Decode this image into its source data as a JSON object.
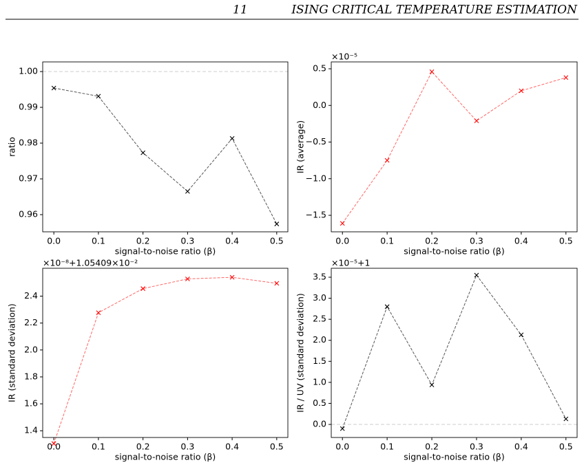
{
  "header": {
    "number": "11",
    "title": "ISING CRITICAL TEMPERATURE ESTIMATION"
  },
  "chart_data": [
    {
      "type": "line",
      "x_label": "signal-to-noise ratio (β)",
      "y_label": "ratio",
      "x": [
        0.0,
        0.1,
        0.2,
        0.3,
        0.4,
        0.5
      ],
      "values": [
        0.9954,
        0.9931,
        0.9773,
        0.9665,
        0.9813,
        0.9574
      ],
      "color": "#555555",
      "marker_color": "#000000",
      "hline": 1.0,
      "xlim": [
        -0.025,
        0.525
      ],
      "xticks": [
        {
          "value": 0,
          "label": "0.0"
        },
        0.1,
        0.2,
        0.3,
        0.4,
        0.5
      ],
      "ylim": [
        0.9552,
        1.0027
      ],
      "yticks": [
        {
          "value": 1,
          "label": "1.00"
        },
        0.99,
        0.98,
        0.97,
        0.96
      ]
    },
    {
      "type": "line",
      "x_label": "signal-to-noise ratio (β)",
      "y_label": "IR (average)",
      "offset_label": "×10⁻⁵",
      "x": [
        0.0,
        0.1,
        0.2,
        0.3,
        0.4,
        0.5
      ],
      "values": [
        -1.61,
        -0.75,
        0.46,
        -0.21,
        0.2,
        0.38
      ],
      "color": "#ff6666",
      "marker_color": "#ff0000",
      "xlim": [
        -0.025,
        0.525
      ],
      "xticks": [
        {
          "value": 0,
          "label": "0.0"
        },
        0.1,
        0.2,
        0.3,
        0.4,
        0.5
      ],
      "ylim": [
        -1.725,
        0.594
      ],
      "yticks": [
        0.5,
        {
          "value": 0,
          "label": "0.0"
        },
        {
          "value": -0.5,
          "label": "−0.5"
        },
        {
          "value": -1,
          "label": "−1.0"
        },
        {
          "value": -1.5,
          "label": "−1.5"
        }
      ]
    },
    {
      "type": "line",
      "x_label": "signal-to-noise ratio (β)",
      "y_label": "IR (standard deviation)",
      "offset_label": "×10⁻⁸+1.05409×10⁻²",
      "x": [
        0.0,
        0.1,
        0.2,
        0.3,
        0.4,
        0.5
      ],
      "values": [
        1.305,
        2.277,
        2.456,
        2.528,
        2.54,
        2.495
      ],
      "color": "#ff6666",
      "marker_color": "#ff0000",
      "xlim": [
        -0.025,
        0.525
      ],
      "xticks": [
        {
          "value": 0,
          "label": "0.0"
        },
        0.1,
        0.2,
        0.3,
        0.4,
        0.5
      ],
      "ylim": [
        1.35,
        2.607
      ],
      "yticks": [
        2.4,
        2.2,
        {
          "value": 2,
          "label": "2.0"
        },
        1.8,
        1.6,
        1.4
      ]
    },
    {
      "type": "line",
      "x_label": "signal-to-noise ratio (β)",
      "y_label": "IR / UV (standard deviation)",
      "offset_label": "×10⁻⁵+1",
      "x": [
        0.0,
        0.1,
        0.2,
        0.3,
        0.4,
        0.5
      ],
      "values": [
        -0.1,
        2.8,
        0.94,
        3.55,
        2.13,
        0.13
      ],
      "color": "#555555",
      "marker_color": "#000000",
      "hline": 0,
      "xlim": [
        -0.025,
        0.525
      ],
      "xticks": [
        {
          "value": 0,
          "label": "0.0"
        },
        0.1,
        0.2,
        0.3,
        0.4,
        0.5
      ],
      "ylim": [
        -0.311,
        3.713
      ],
      "yticks": [
        3.5,
        {
          "value": 3,
          "label": "3.0"
        },
        2.5,
        {
          "value": 2,
          "label": "2.0"
        },
        1.5,
        {
          "value": 1,
          "label": "1.0"
        },
        0.5,
        {
          "value": 0,
          "label": "0.0"
        }
      ]
    }
  ]
}
